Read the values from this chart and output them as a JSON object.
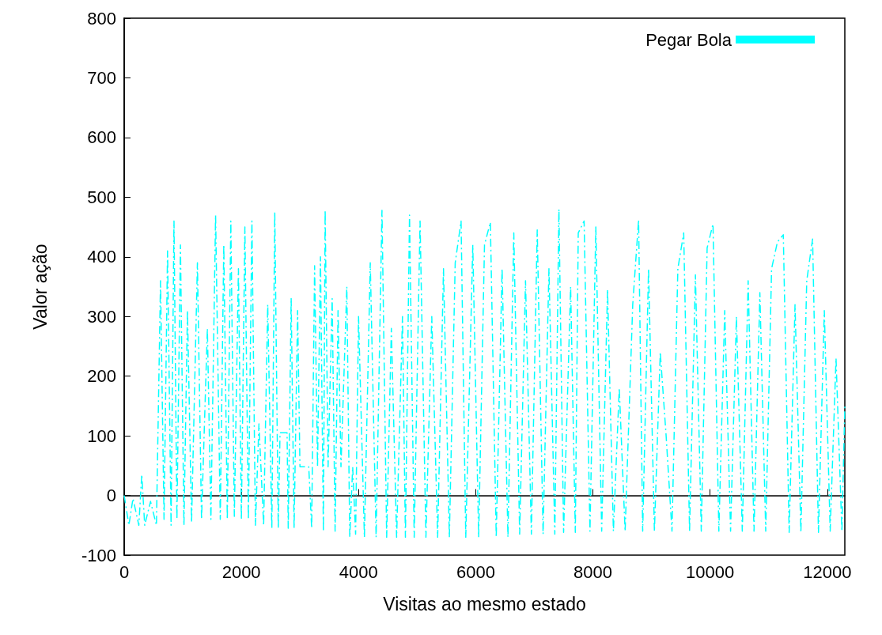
{
  "chart_data": {
    "type": "line",
    "xlabel": "Visitas ao mesmo estado",
    "ylabel": "Valor ação",
    "xlim": [
      0,
      12300
    ],
    "xticks": [
      0,
      2000,
      4000,
      6000,
      8000,
      10000,
      12000
    ],
    "ylim": [
      -100,
      800
    ],
    "yticks": [
      -100,
      0,
      100,
      200,
      300,
      400,
      500,
      600,
      700,
      800
    ],
    "legend": "top right",
    "marker": "none",
    "line_style": "dashed",
    "series": [
      {
        "name": "Pegar Bola",
        "color": "#00ffff",
        "x": [
          0,
          80,
          150,
          250,
          300,
          350,
          450,
          550,
          620,
          680,
          740,
          800,
          850,
          900,
          960,
          1020,
          1080,
          1150,
          1250,
          1320,
          1420,
          1480,
          1560,
          1640,
          1700,
          1760,
          1820,
          1880,
          1950,
          2000,
          2060,
          2120,
          2180,
          2240,
          2300,
          2380,
          2450,
          2520,
          2570,
          2630,
          2660,
          2780,
          2800,
          2850,
          2900,
          2960,
          3000,
          3150,
          3200,
          3250,
          3300,
          3350,
          3400,
          3430,
          3480,
          3550,
          3600,
          3650,
          3700,
          3800,
          3850,
          3900,
          3950,
          4000,
          4100,
          4200,
          4300,
          4400,
          4480,
          4560,
          4650,
          4750,
          4800,
          4870,
          4950,
          5050,
          5150,
          5250,
          5350,
          5450,
          5550,
          5650,
          5750,
          5830,
          5950,
          6050,
          6150,
          6250,
          6350,
          6450,
          6550,
          6650,
          6750,
          6850,
          6950,
          7050,
          7150,
          7250,
          7350,
          7420,
          7500,
          7620,
          7700,
          7750,
          7850,
          7950,
          8050,
          8150,
          8250,
          8350,
          8450,
          8550,
          8680,
          8780,
          8850,
          8950,
          9050,
          9150,
          9250,
          9350,
          9450,
          9550,
          9650,
          9750,
          9850,
          9950,
          10050,
          10150,
          10250,
          10350,
          10450,
          10550,
          10650,
          10750,
          10850,
          10950,
          11050,
          11150,
          11250,
          11350,
          11450,
          11550,
          11650,
          11750,
          11850,
          11950,
          12050,
          12150,
          12250,
          12300
        ],
        "values": [
          0,
          -50,
          -5,
          -50,
          35,
          -50,
          -10,
          -50,
          360,
          -40,
          410,
          -50,
          460,
          -40,
          420,
          -50,
          310,
          -45,
          390,
          -40,
          280,
          -40,
          470,
          -40,
          420,
          -40,
          460,
          -35,
          380,
          -40,
          450,
          -40,
          460,
          -50,
          120,
          -50,
          320,
          -55,
          475,
          -55,
          105,
          105,
          -55,
          330,
          -55,
          310,
          48,
          48,
          -55,
          385,
          48,
          400,
          -60,
          478,
          48,
          330,
          -60,
          310,
          48,
          350,
          -70,
          48,
          -65,
          300,
          -70,
          390,
          -70,
          478,
          -70,
          280,
          -70,
          300,
          -70,
          470,
          -70,
          460,
          -70,
          300,
          -70,
          380,
          -70,
          390,
          460,
          -70,
          420,
          -70,
          420,
          458,
          -70,
          380,
          -70,
          440,
          -65,
          360,
          -65,
          445,
          -65,
          380,
          -65,
          480,
          -62,
          350,
          -62,
          440,
          460,
          -60,
          450,
          -60,
          345,
          -60,
          180,
          -60,
          320,
          462,
          -60,
          380,
          -60,
          240,
          100,
          -60,
          380,
          440,
          -60,
          370,
          -60,
          415,
          455,
          -60,
          310,
          -60,
          300,
          -60,
          360,
          -60,
          340,
          -60,
          380,
          425,
          437,
          -62,
          320,
          -62,
          360,
          430,
          -62,
          310,
          -60,
          230,
          -60,
          150
        ]
      }
    ]
  }
}
